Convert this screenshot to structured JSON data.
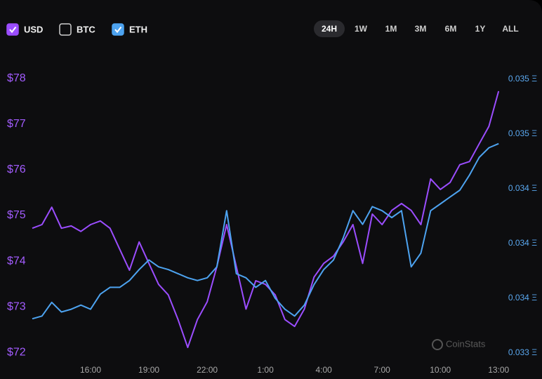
{
  "chart_data": {
    "type": "line",
    "controls": {
      "ranges": [
        "24H",
        "1W",
        "1M",
        "3M",
        "6M",
        "1Y",
        "ALL"
      ],
      "active_range": "24H"
    },
    "hidden_series": [
      {
        "name": "BTC",
        "checked": false
      }
    ],
    "watermark": "CoinStats",
    "x": [
      0,
      0.5,
      1,
      1.5,
      2,
      2.5,
      3,
      3.5,
      4,
      4.5,
      5,
      5.5,
      6,
      6.5,
      7,
      7.5,
      8,
      8.5,
      9,
      9.5,
      10,
      10.5,
      11,
      11.5,
      12,
      12.5,
      13,
      13.5,
      14,
      14.5,
      15,
      15.5,
      16,
      16.5,
      17,
      17.5,
      18,
      18.5,
      19,
      19.5,
      20,
      20.5,
      21,
      21.5,
      22,
      22.5,
      23,
      23.5,
      24
    ],
    "xlim": [
      0,
      24.1
    ],
    "xticks": [
      {
        "value": 3,
        "label": "16:00"
      },
      {
        "value": 6,
        "label": "19:00"
      },
      {
        "value": 9,
        "label": "22:00"
      },
      {
        "value": 12,
        "label": "1:00"
      },
      {
        "value": 15,
        "label": "4:00"
      },
      {
        "value": 18,
        "label": "7:00"
      },
      {
        "value": 21,
        "label": "10:00"
      },
      {
        "value": 24,
        "label": "13:00"
      }
    ],
    "ylim": [
      71.88,
      78.18
    ],
    "yticks": [
      {
        "value": 72,
        "label": "$72"
      },
      {
        "value": 73,
        "label": "$73"
      },
      {
        "value": 74,
        "label": "$74"
      },
      {
        "value": 75,
        "label": "$75"
      },
      {
        "value": 76,
        "label": "$76"
      },
      {
        "value": 77,
        "label": "$77"
      },
      {
        "value": 78,
        "label": "$78"
      }
    ],
    "y2lim": [
      0.033164,
      0.035267
    ],
    "y2ticks": [
      {
        "value": 0.0332,
        "label": "0.033 Ξ"
      },
      {
        "value": 0.0336,
        "label": "0.034 Ξ"
      },
      {
        "value": 0.034,
        "label": "0.034 Ξ"
      },
      {
        "value": 0.0344,
        "label": "0.034 Ξ"
      },
      {
        "value": 0.0348,
        "label": "0.035 Ξ"
      },
      {
        "value": 0.0352,
        "label": "0.035 Ξ"
      }
    ],
    "series": [
      {
        "name": "USD",
        "color": "#9b4dff",
        "checked": true,
        "values": [
          74.72,
          74.8,
          75.18,
          74.72,
          74.77,
          74.65,
          74.8,
          74.88,
          74.72,
          74.26,
          73.8,
          74.42,
          73.95,
          73.49,
          73.26,
          72.72,
          72.11,
          72.72,
          73.11,
          73.88,
          74.8,
          73.88,
          72.95,
          73.57,
          73.49,
          73.26,
          72.72,
          72.57,
          72.95,
          73.65,
          73.95,
          74.11,
          74.42,
          74.8,
          73.95,
          75.03,
          74.8,
          75.11,
          75.26,
          75.11,
          74.8,
          75.8,
          75.57,
          75.72,
          76.11,
          76.18,
          76.57,
          76.95,
          77.72
        ]
      },
      {
        "name": "ETH",
        "color": "#4da3f0",
        "checked": true,
        "axis": "y2",
        "values": [
          0.03345,
          0.03347,
          0.03357,
          0.0335,
          0.03352,
          0.03355,
          0.03352,
          0.03363,
          0.03368,
          0.03368,
          0.03373,
          0.03381,
          0.03388,
          0.03383,
          0.03381,
          0.03378,
          0.03375,
          0.03373,
          0.03375,
          0.03383,
          0.03424,
          0.03378,
          0.03375,
          0.03368,
          0.03373,
          0.0336,
          0.03352,
          0.03347,
          0.03355,
          0.0337,
          0.03381,
          0.03388,
          0.03404,
          0.03424,
          0.03414,
          0.03427,
          0.03424,
          0.03419,
          0.03424,
          0.03383,
          0.03393,
          0.03424,
          0.03429,
          0.03434,
          0.03439,
          0.0345,
          0.03463,
          0.0347,
          0.03473
        ]
      }
    ]
  }
}
